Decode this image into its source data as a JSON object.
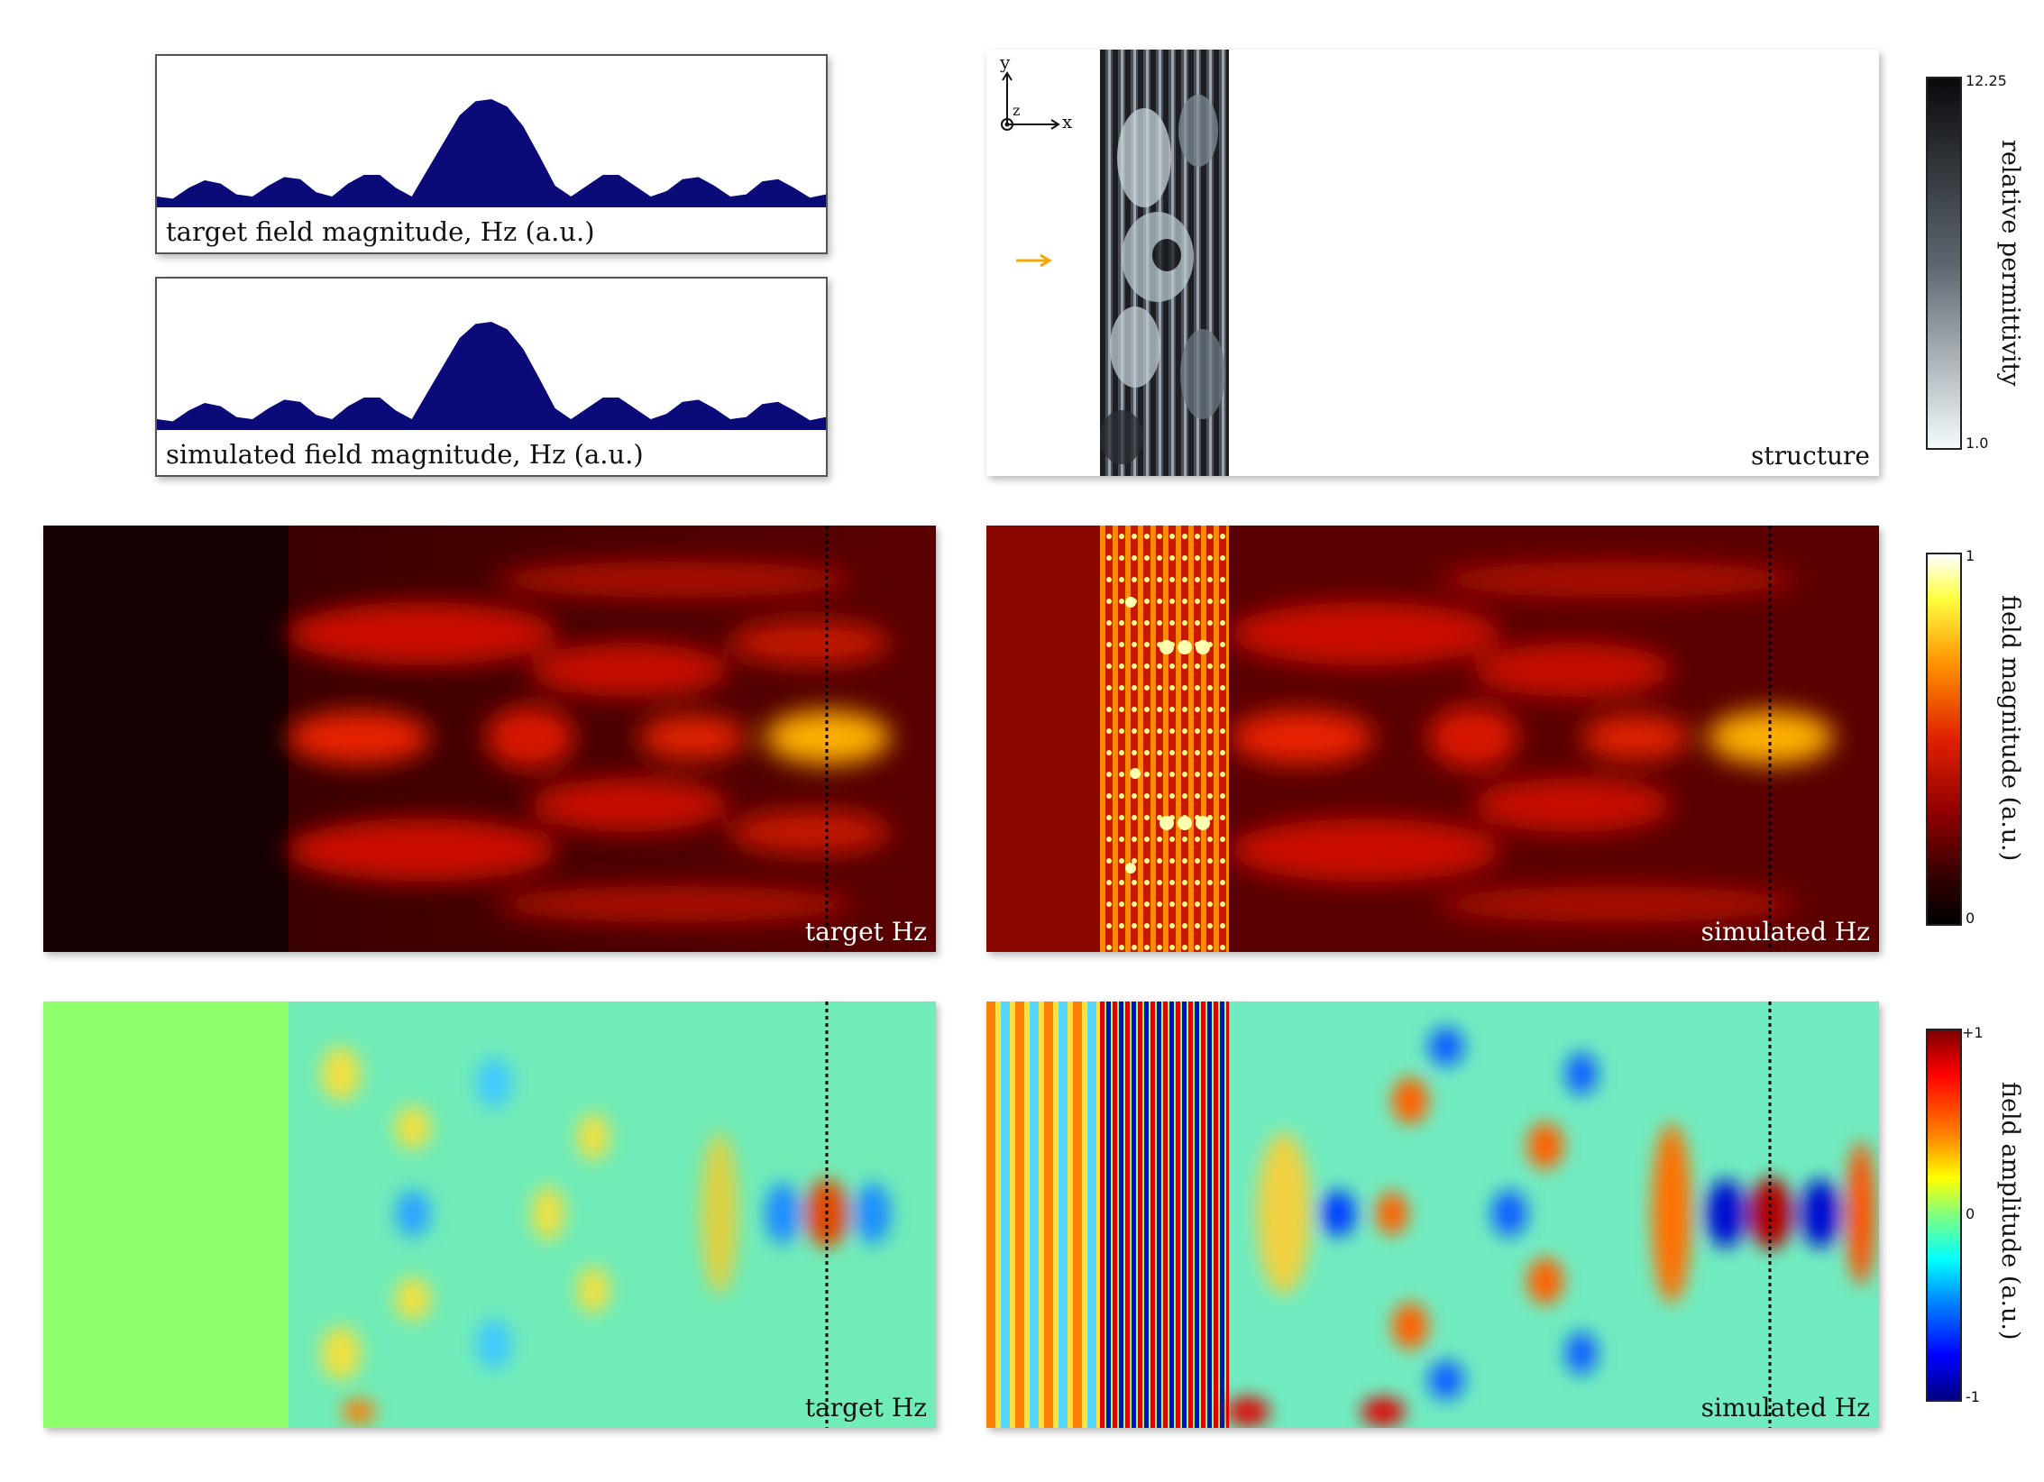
{
  "top_panels": {
    "target_caption": "target field magnitude, Hz (a.u.)",
    "simulated_caption": "simulated field magnitude, Hz (a.u.)",
    "profile_data": {
      "type": "area",
      "series": [
        {
          "values": [
            0.1,
            0.08,
            0.18,
            0.25,
            0.22,
            0.12,
            0.1,
            0.2,
            0.28,
            0.26,
            0.14,
            0.1,
            0.22,
            0.3,
            0.3,
            0.18,
            0.1,
            0.35,
            0.6,
            0.85,
            0.98,
            1.0,
            0.93,
            0.75,
            0.48,
            0.2,
            0.1,
            0.2,
            0.3,
            0.3,
            0.2,
            0.1,
            0.15,
            0.26,
            0.28,
            0.2,
            0.1,
            0.12,
            0.24,
            0.26,
            0.18,
            0.09,
            0.12
          ]
        }
      ]
    }
  },
  "structure_panel": {
    "caption": "structure",
    "axis_y": "y",
    "axis_x": "x",
    "axis_z": "z",
    "arrow_color": "#f5a800"
  },
  "magnitude_row": {
    "target_caption": "target Hz",
    "simulated_caption": "simulated Hz"
  },
  "amplitude_row": {
    "target_caption": "target Hz",
    "simulated_caption": "simulated Hz"
  },
  "colorbars": {
    "permittivity": {
      "label": "relative permittivity",
      "max": "12.25",
      "min": "1.0"
    },
    "magnitude": {
      "label": "field magnitude (a.u.)",
      "max": "1",
      "min": "0"
    },
    "amplitude": {
      "label": "field amplitude (a.u.)",
      "max": "+1",
      "mid": "0",
      "min": "-1"
    }
  },
  "colors": {
    "profile_fill": "#0a0a78",
    "hot_dark": "#140000",
    "hot_mid": "#d01000",
    "jet_bg": "#8cff6a"
  }
}
